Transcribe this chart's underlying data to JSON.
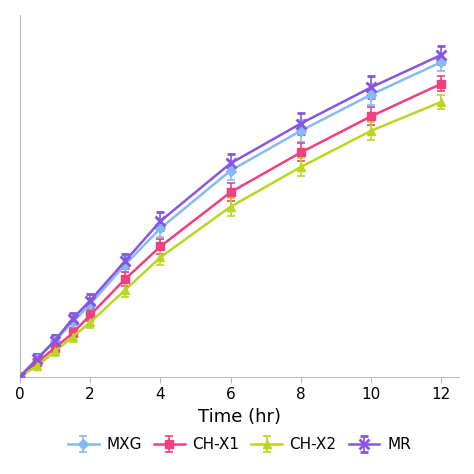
{
  "time": [
    0,
    0.5,
    1,
    1.5,
    2,
    3,
    4,
    6,
    8,
    10,
    12
  ],
  "MXG": [
    0,
    5,
    10,
    15,
    20,
    31,
    41,
    57,
    68,
    78,
    87
  ],
  "MXG_err": [
    1.0,
    1.2,
    1.5,
    1.5,
    1.8,
    2.0,
    2.5,
    2.5,
    3.0,
    3.0,
    2.5
  ],
  "CHX1": [
    0,
    4,
    8,
    12,
    17,
    27,
    36,
    51,
    62,
    72,
    81
  ],
  "CHX1_err": [
    0.8,
    1.0,
    1.2,
    1.5,
    1.5,
    2.0,
    2.0,
    2.5,
    2.5,
    2.5,
    2.0
  ],
  "CHX2": [
    0,
    3,
    7,
    11,
    15,
    24,
    33,
    47,
    58,
    68,
    76
  ],
  "CHX2_err": [
    0.8,
    1.0,
    1.2,
    1.5,
    1.5,
    2.0,
    2.0,
    2.5,
    2.5,
    2.5,
    2.0
  ],
  "MR": [
    0,
    5,
    10,
    16,
    21,
    32,
    43,
    59,
    70,
    80,
    89
  ],
  "MR_err": [
    1.0,
    1.2,
    1.5,
    1.5,
    1.8,
    2.0,
    2.5,
    2.5,
    3.0,
    3.0,
    2.5
  ],
  "color_MXG": "#85baf5",
  "color_CHX1": "#f04080",
  "color_CHX2": "#b8d820",
  "color_MR": "#8855e0",
  "xlabel": "Time (hr)",
  "xlim": [
    0,
    12.5
  ],
  "ylim": [
    0,
    100
  ],
  "xticks": [
    0,
    2,
    4,
    6,
    8,
    10,
    12
  ],
  "legend_labels": [
    "MXG",
    "CH-X1",
    "CH-X2",
    "MR"
  ],
  "xlabel_fontsize": 13,
  "tick_fontsize": 11,
  "legend_fontsize": 11
}
